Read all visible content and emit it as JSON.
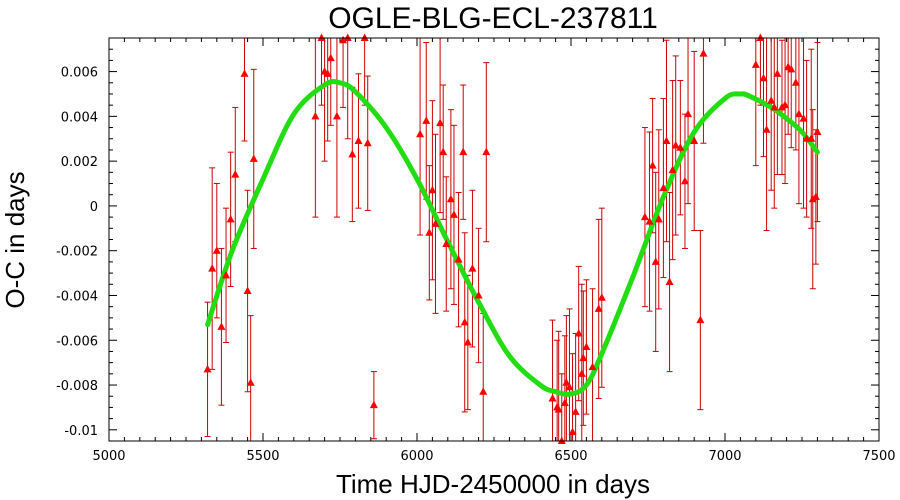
{
  "chart_data": {
    "type": "scatter",
    "title": "OGLE-BLG-ECL-237811",
    "xlabel": "Time HJD-2450000 in days",
    "ylabel": "O-C in days",
    "xlim": [
      5000,
      7500
    ],
    "ylim": [
      -0.0105,
      0.0075
    ],
    "x_ticks": [
      5000,
      5500,
      6000,
      6500,
      7000,
      7500
    ],
    "y_ticks": [
      -0.01,
      -0.008,
      -0.006,
      -0.004,
      -0.002,
      0,
      0.002,
      0.004,
      0.006
    ],
    "x_tick_labels": [
      "5000",
      "5500",
      "6000",
      "6500",
      "7000",
      "7500"
    ],
    "y_tick_labels": [
      "-0.01",
      "-0.008",
      "-0.006",
      "-0.004",
      "-0.002",
      "0",
      "0.002",
      "0.004",
      "0.006"
    ],
    "grid": false,
    "series": [
      {
        "marker": "triangle",
        "color": "#ff0000",
        "points": [
          {
            "x": 5320,
            "y": -0.0073,
            "err": 0.003
          },
          {
            "x": 5335,
            "y": -0.0028,
            "err": 0.0045
          },
          {
            "x": 5350,
            "y": -0.002,
            "err": 0.003
          },
          {
            "x": 5365,
            "y": -0.0054,
            "err": 0.0035
          },
          {
            "x": 5380,
            "y": -0.0031,
            "err": 0.003
          },
          {
            "x": 5395,
            "y": -0.0006,
            "err": 0.003
          },
          {
            "x": 5410,
            "y": 0.0014,
            "err": 0.003
          },
          {
            "x": 5440,
            "y": 0.0059,
            "err": 0.003
          },
          {
            "x": 5450,
            "y": -0.0038,
            "err": 0.0045
          },
          {
            "x": 5460,
            "y": -0.0079,
            "err": 0.003
          },
          {
            "x": 5470,
            "y": 0.0021,
            "err": 0.004
          },
          {
            "x": 5670,
            "y": 0.004,
            "err": 0.0045
          },
          {
            "x": 5690,
            "y": 0.0075,
            "err": 0.003
          },
          {
            "x": 5700,
            "y": 0.006,
            "err": 0.004
          },
          {
            "x": 5710,
            "y": 0.0059,
            "err": 0.003
          },
          {
            "x": 5720,
            "y": 0.0066,
            "err": 0.003
          },
          {
            "x": 5740,
            "y": 0.004,
            "err": 0.0045
          },
          {
            "x": 5760,
            "y": 0.0074,
            "err": 0.003
          },
          {
            "x": 5775,
            "y": 0.0075,
            "err": 0.0045
          },
          {
            "x": 5790,
            "y": 0.0023,
            "err": 0.003
          },
          {
            "x": 5810,
            "y": 0.0029,
            "err": 0.003
          },
          {
            "x": 5830,
            "y": 0.0075,
            "err": 0.003
          },
          {
            "x": 5840,
            "y": 0.0028,
            "err": 0.003
          },
          {
            "x": 5860,
            "y": -0.0089,
            "err": 0.0015
          },
          {
            "x": 6010,
            "y": 0.0032,
            "err": 0.0045
          },
          {
            "x": 6030,
            "y": 0.0038,
            "err": 0.0035
          },
          {
            "x": 6040,
            "y": -0.0012,
            "err": 0.003
          },
          {
            "x": 6050,
            "y": 0.0007,
            "err": 0.004
          },
          {
            "x": 6060,
            "y": -0.0008,
            "err": 0.004
          },
          {
            "x": 6075,
            "y": 0.0037,
            "err": 0.004
          },
          {
            "x": 6085,
            "y": 0.0024,
            "err": 0.003
          },
          {
            "x": 6095,
            "y": -0.0017,
            "err": 0.003
          },
          {
            "x": 6110,
            "y": 0.0003,
            "err": 0.004
          },
          {
            "x": 6120,
            "y": -0.0004,
            "err": 0.004
          },
          {
            "x": 6135,
            "y": -0.0024,
            "err": 0.003
          },
          {
            "x": 6150,
            "y": 0.0024,
            "err": 0.003
          },
          {
            "x": 6155,
            "y": -0.0052,
            "err": 0.004
          },
          {
            "x": 6165,
            "y": -0.0061,
            "err": 0.003
          },
          {
            "x": 6180,
            "y": -0.0028,
            "err": 0.0035
          },
          {
            "x": 6200,
            "y": -0.004,
            "err": 0.003
          },
          {
            "x": 6215,
            "y": -0.0083,
            "err": 0.0035
          },
          {
            "x": 6225,
            "y": 0.0024,
            "err": 0.004
          },
          {
            "x": 6440,
            "y": -0.0086,
            "err": 0.0035
          },
          {
            "x": 6455,
            "y": -0.009,
            "err": 0.003
          },
          {
            "x": 6460,
            "y": -0.0091,
            "err": 0.0035
          },
          {
            "x": 6470,
            "y": -0.0105,
            "err": 0.003
          },
          {
            "x": 6480,
            "y": -0.0088,
            "err": 0.003
          },
          {
            "x": 6485,
            "y": -0.0079,
            "err": 0.003
          },
          {
            "x": 6495,
            "y": -0.0081,
            "err": 0.0035
          },
          {
            "x": 6505,
            "y": -0.0101,
            "err": 0.0035
          },
          {
            "x": 6515,
            "y": -0.0092,
            "err": 0.0035
          },
          {
            "x": 6525,
            "y": -0.0057,
            "err": 0.003
          },
          {
            "x": 6535,
            "y": -0.0075,
            "err": 0.004
          },
          {
            "x": 6540,
            "y": -0.0068,
            "err": 0.003
          },
          {
            "x": 6550,
            "y": -0.0063,
            "err": 0.003
          },
          {
            "x": 6570,
            "y": -0.0072,
            "err": 0.0035
          },
          {
            "x": 6590,
            "y": -0.0046,
            "err": 0.004
          },
          {
            "x": 6600,
            "y": -0.0041,
            "err": 0.004
          },
          {
            "x": 6740,
            "y": -0.0005,
            "err": 0.004
          },
          {
            "x": 6755,
            "y": -0.0007,
            "err": 0.004
          },
          {
            "x": 6765,
            "y": 0.0018,
            "err": 0.003
          },
          {
            "x": 6775,
            "y": -0.0025,
            "err": 0.004
          },
          {
            "x": 6785,
            "y": -0.0006,
            "err": 0.004
          },
          {
            "x": 6800,
            "y": 0.0008,
            "err": 0.004
          },
          {
            "x": 6810,
            "y": 0.0029,
            "err": 0.0045
          },
          {
            "x": 6820,
            "y": -0.0034,
            "err": 0.004
          },
          {
            "x": 6830,
            "y": 0.0016,
            "err": 0.004
          },
          {
            "x": 6840,
            "y": 0.0027,
            "err": 0.004
          },
          {
            "x": 6855,
            "y": 0.0026,
            "err": 0.003
          },
          {
            "x": 6870,
            "y": 0.0011,
            "err": 0.003
          },
          {
            "x": 6880,
            "y": 0.0041,
            "err": 0.004
          },
          {
            "x": 6900,
            "y": 0.0029,
            "err": 0.004
          },
          {
            "x": 6920,
            "y": -0.0051,
            "err": 0.004
          },
          {
            "x": 6930,
            "y": 0.0068,
            "err": 0.004
          },
          {
            "x": 7100,
            "y": 0.0063,
            "err": 0.0045
          },
          {
            "x": 7115,
            "y": 0.0075,
            "err": 0.003
          },
          {
            "x": 7125,
            "y": 0.0057,
            "err": 0.0035
          },
          {
            "x": 7135,
            "y": 0.0034,
            "err": 0.0045
          },
          {
            "x": 7150,
            "y": 0.0047,
            "err": 0.004
          },
          {
            "x": 7160,
            "y": 0.0044,
            "err": 0.0045
          },
          {
            "x": 7170,
            "y": 0.0059,
            "err": 0.0045
          },
          {
            "x": 7185,
            "y": 0.0044,
            "err": 0.003
          },
          {
            "x": 7195,
            "y": 0.0045,
            "err": 0.0035
          },
          {
            "x": 7205,
            "y": 0.0062,
            "err": 0.003
          },
          {
            "x": 7215,
            "y": 0.0061,
            "err": 0.0035
          },
          {
            "x": 7230,
            "y": 0.0055,
            "err": 0.003
          },
          {
            "x": 7240,
            "y": 0.0041,
            "err": 0.004
          },
          {
            "x": 7255,
            "y": 0.0039,
            "err": 0.004
          },
          {
            "x": 7265,
            "y": 0.003,
            "err": 0.0035
          },
          {
            "x": 7280,
            "y": 0.003,
            "err": 0.004
          },
          {
            "x": 7285,
            "y": 0.0003,
            "err": 0.004
          },
          {
            "x": 7295,
            "y": 0.0004,
            "err": 0.003
          },
          {
            "x": 7300,
            "y": 0.0033,
            "err": 0.004
          }
        ]
      },
      {
        "type": "line",
        "color": "#22dd11",
        "x": [
          5320,
          5400,
          5500,
          5600,
          5700,
          5750,
          5800,
          5900,
          6000,
          6100,
          6200,
          6300,
          6400,
          6450,
          6500,
          6550,
          6600,
          6700,
          6800,
          6900,
          7000,
          7050,
          7080,
          7150,
          7200,
          7250,
          7300
        ],
        "y": [
          -0.0053,
          -0.002,
          0.0012,
          0.0041,
          0.0054,
          0.0055,
          0.0051,
          0.0035,
          0.0012,
          -0.0016,
          -0.0043,
          -0.0067,
          -0.008,
          -0.0083,
          -0.0084,
          -0.008,
          -0.0066,
          -0.0032,
          0.0004,
          0.0033,
          0.0048,
          0.005,
          0.0049,
          0.0044,
          0.0039,
          0.0033,
          0.0024
        ]
      }
    ]
  }
}
